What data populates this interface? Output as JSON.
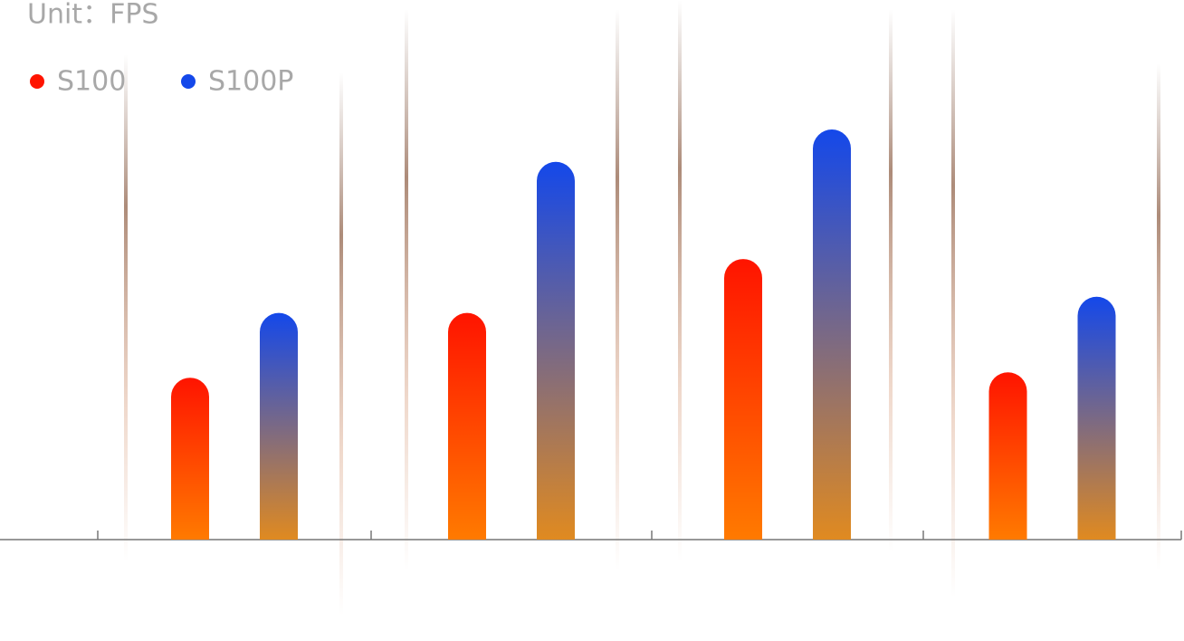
{
  "chart_data": {
    "type": "bar",
    "title": "Unit：FPS",
    "categories": [
      null,
      null,
      null,
      null
    ],
    "series": [
      {
        "name": "S100",
        "color": "#ff1400",
        "bottom_color": "#ff7a00",
        "values": [
          30,
          42,
          52,
          31
        ]
      },
      {
        "name": "S100P",
        "color": "#1448ea",
        "bottom_color": "#e08a20",
        "values": [
          42,
          70,
          76,
          45
        ]
      }
    ],
    "ylim": [
      0,
      100
    ]
  }
}
